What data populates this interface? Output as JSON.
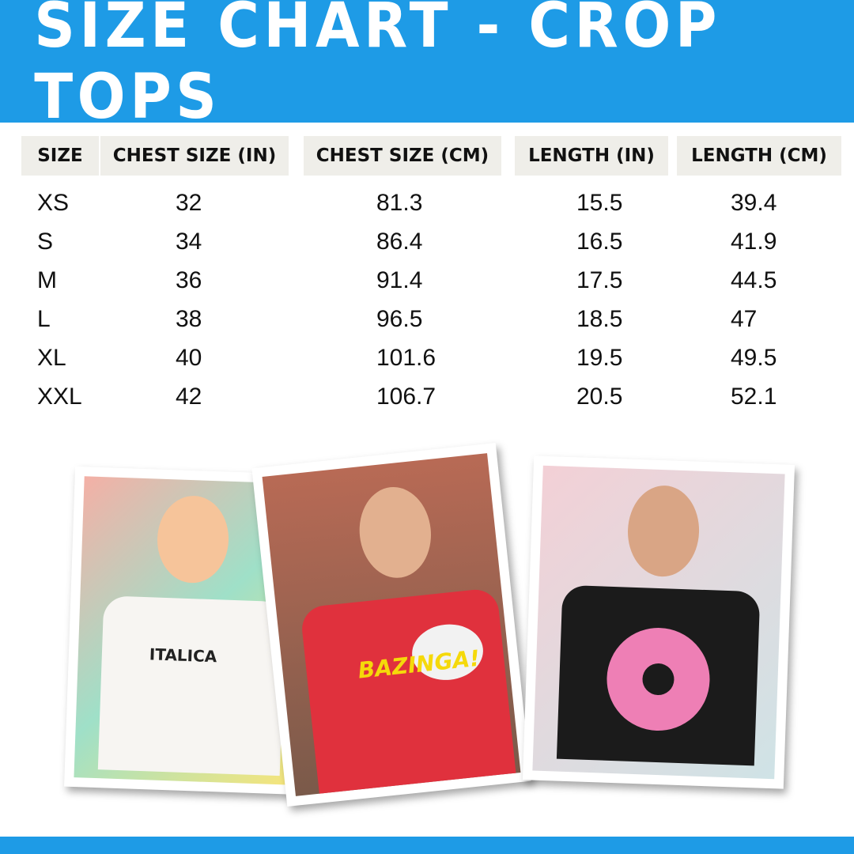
{
  "title": "SIZE CHART - CROP TOPS",
  "columns": [
    "SIZE",
    "CHEST SIZE (IN)",
    "CHEST SIZE (CM)",
    "LENGTH (IN)",
    "LENGTH (CM)"
  ],
  "rows": [
    [
      "XS",
      "32",
      "81.3",
      "15.5",
      "39.4"
    ],
    [
      "S",
      "34",
      "86.4",
      "16.5",
      "41.9"
    ],
    [
      "M",
      "36",
      "91.4",
      "17.5",
      "44.5"
    ],
    [
      "L",
      "38",
      "96.5",
      "18.5",
      "47"
    ],
    [
      "XL",
      "40",
      "101.6",
      "19.5",
      "49.5"
    ],
    [
      "XXL",
      "42",
      "106.7",
      "20.5",
      "52.1"
    ]
  ],
  "photos": [
    {
      "shirt_color": "#f7f5f2",
      "shirt_print": "ITALICA"
    },
    {
      "shirt_color": "#e0313d",
      "shirt_print": "BAZINGA!"
    },
    {
      "shirt_color": "#1b1b1b",
      "shirt_print": "donut"
    }
  ],
  "colors": {
    "brand_blue": "#1e9be6",
    "header_cell": "#efeee9"
  }
}
